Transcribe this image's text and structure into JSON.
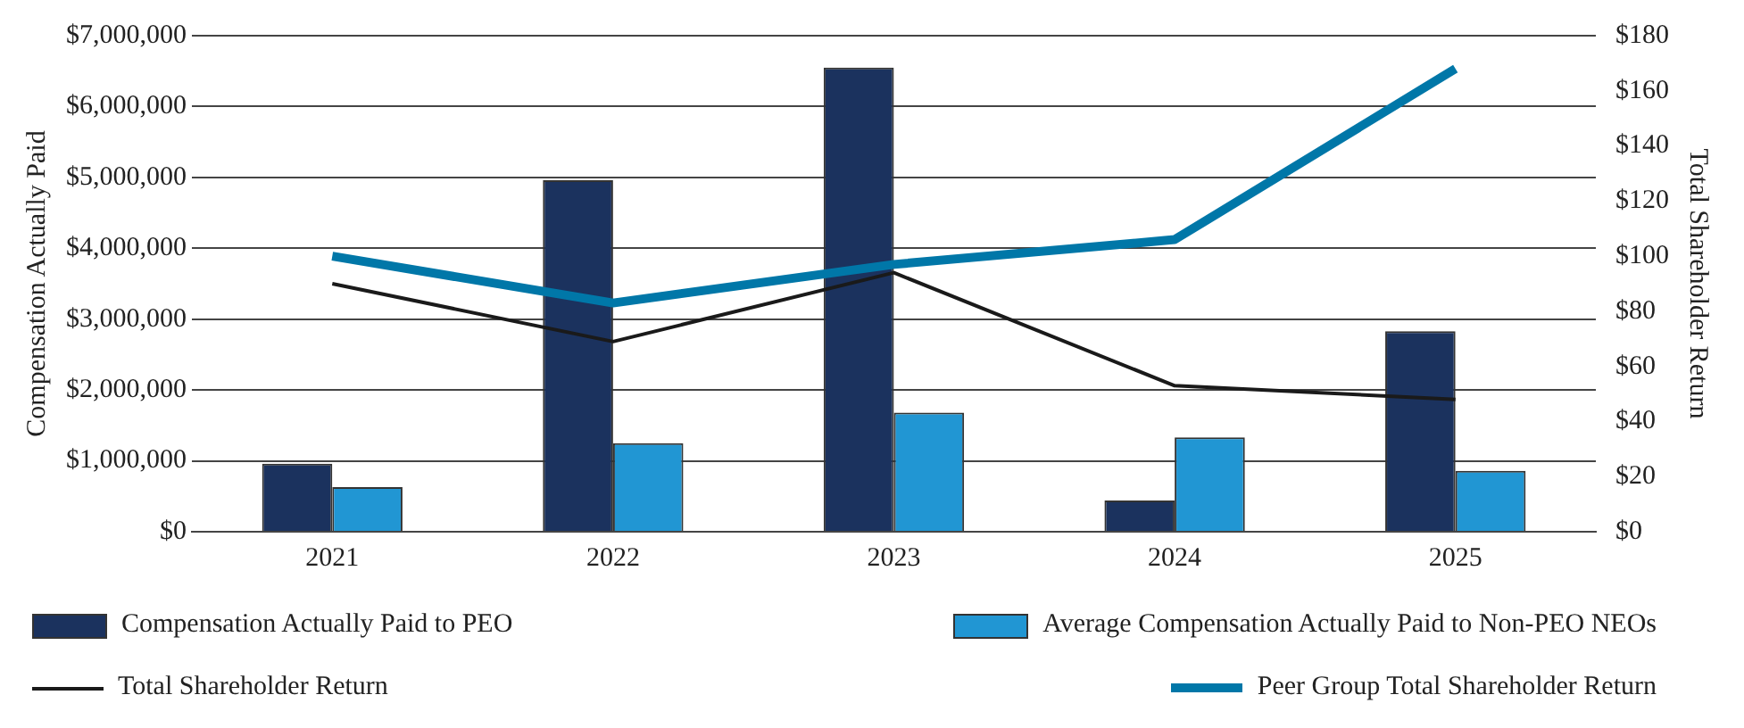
{
  "chart_data": {
    "type": "bar",
    "categories": [
      "2021",
      "2022",
      "2023",
      "2024",
      "2025"
    ],
    "ylabel": "Compensation Actually Paid",
    "y2label": "Total Shareholder Return",
    "ylim": [
      0,
      7000000
    ],
    "yticks": [
      {
        "value": 0,
        "label": "$0"
      },
      {
        "value": 1000000,
        "label": "$1,000,000"
      },
      {
        "value": 2000000,
        "label": "$2,000,000"
      },
      {
        "value": 3000000,
        "label": "$3,000,000"
      },
      {
        "value": 4000000,
        "label": "$4,000,000"
      },
      {
        "value": 5000000,
        "label": "$5,000,000"
      },
      {
        "value": 6000000,
        "label": "$6,000,000"
      },
      {
        "value": 7000000,
        "label": "$7,000,000"
      }
    ],
    "y2lim": [
      0,
      180
    ],
    "y2ticks": [
      {
        "value": 0,
        "label": "$0"
      },
      {
        "value": 20,
        "label": "$20"
      },
      {
        "value": 40,
        "label": "$40"
      },
      {
        "value": 60,
        "label": "$60"
      },
      {
        "value": 80,
        "label": "$80"
      },
      {
        "value": 100,
        "label": "$100"
      },
      {
        "value": 120,
        "label": "$120"
      },
      {
        "value": 140,
        "label": "$140"
      },
      {
        "value": 160,
        "label": "$160"
      },
      {
        "value": 180,
        "label": "$180"
      }
    ],
    "grid": "y",
    "legend": "bottom",
    "series": [
      {
        "name": "Compensation Actually Paid to PEO",
        "color": "#1b325e",
        "values": [
          960000,
          4960000,
          6550000,
          440000,
          2830000
        ]
      },
      {
        "name": "Average Compensation Actually Paid to Non-PEO NEOs",
        "color": "#2196d3",
        "values": [
          630000,
          1250000,
          1680000,
          1330000,
          860000
        ]
      },
      {
        "name": "Total Shareholder Return",
        "type": "line",
        "axis": "y2",
        "color": "#1a1a1a",
        "values": [
          90,
          69,
          94,
          53,
          48
        ]
      },
      {
        "name": "Peer Group Total Shareholder Return",
        "type": "line",
        "axis": "y2",
        "color": "#0077a8",
        "values": [
          100,
          83,
          97,
          106,
          168
        ]
      }
    ]
  }
}
